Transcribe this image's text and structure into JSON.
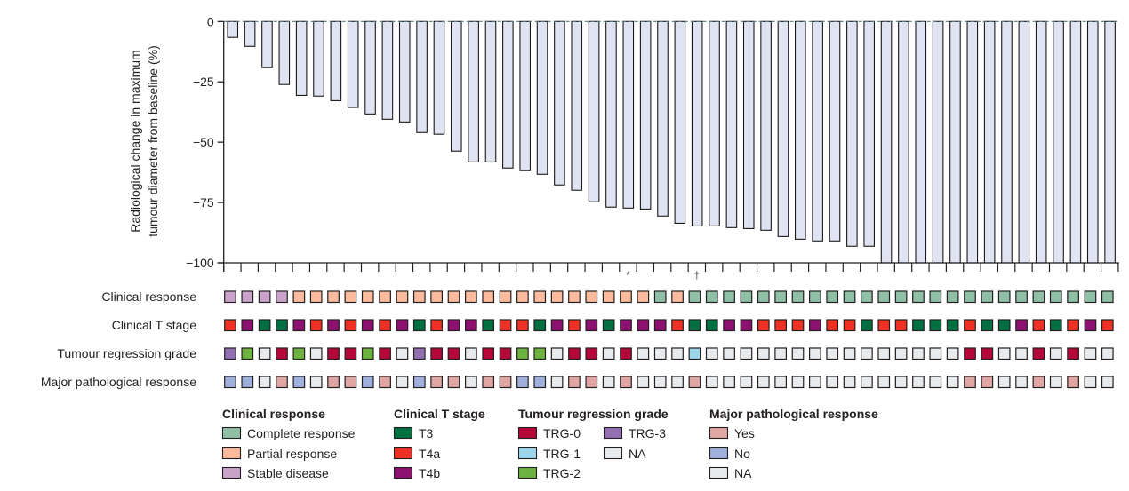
{
  "chart_data": {
    "type": "bar",
    "title": "",
    "xlabel": "",
    "ylabel": "Radiological change in maximum tumour diameter from baseline (%)",
    "ylabel_lines": [
      "Radiological change in maximum",
      "tumour diameter from baseline (%)"
    ],
    "ylim": [
      -100,
      0
    ],
    "yticks": [
      0,
      -25,
      -50,
      -75,
      -100
    ],
    "ytick_labels": [
      "0",
      "−25",
      "−50",
      "−75",
      "−100"
    ],
    "grid": false,
    "reference_line": {
      "y": 0,
      "style": "dashed"
    },
    "values": [
      -6.6,
      -10.3,
      -19.1,
      -26.1,
      -30.6,
      -30.9,
      -32.8,
      -35.6,
      -38.3,
      -40.5,
      -41.6,
      -46.0,
      -46.7,
      -53.7,
      -58.2,
      -58.2,
      -60.7,
      -61.8,
      -63.3,
      -67.7,
      -69.9,
      -74.7,
      -76.9,
      -77.3,
      -77.7,
      -80.6,
      -83.6,
      -84.7,
      -84.7,
      -85.4,
      -85.8,
      -86.5,
      -89.1,
      -90.2,
      -90.9,
      -90.9,
      -93.1,
      -93.1,
      -100,
      -100,
      -100,
      -100,
      -100,
      -100,
      -100,
      -100,
      -100,
      -100,
      -100,
      -100,
      -100,
      -100
    ],
    "annotations": [
      {
        "patient_index": 24,
        "symbol": "*"
      },
      {
        "patient_index": 28,
        "symbol": "†"
      }
    ],
    "tracks": [
      {
        "name": "Clinical response",
        "values": [
          "SD",
          "SD",
          "SD",
          "SD",
          "PR",
          "PR",
          "PR",
          "PR",
          "PR",
          "PR",
          "PR",
          "PR",
          "PR",
          "PR",
          "PR",
          "PR",
          "PR",
          "PR",
          "PR",
          "PR",
          "PR",
          "PR",
          "PR",
          "PR",
          "PR",
          "CR",
          "PR",
          "CR",
          "CR",
          "CR",
          "CR",
          "CR",
          "CR",
          "CR",
          "CR",
          "CR",
          "CR",
          "CR",
          "CR",
          "CR",
          "CR",
          "CR",
          "CR",
          "CR",
          "CR",
          "CR",
          "CR",
          "CR",
          "CR",
          "CR",
          "CR",
          "CR"
        ]
      },
      {
        "name": "Clinical T stage",
        "values": [
          "T4a",
          "T4b",
          "T3",
          "T3",
          "T4b",
          "T4a",
          "T4b",
          "T4a",
          "T4b",
          "T4a",
          "T4b",
          "T3",
          "T4a",
          "T4b",
          "T4b",
          "T3",
          "T4a",
          "T4a",
          "T3",
          "T4b",
          "T4a",
          "T4b",
          "T3",
          "T4b",
          "T4b",
          "T4b",
          "T4a",
          "T3",
          "T3",
          "T4b",
          "T4b",
          "T4a",
          "T4a",
          "T4a",
          "T4b",
          "T4a",
          "T4a",
          "T3",
          "T4a",
          "T4a",
          "T3",
          "T3",
          "T3",
          "T4a",
          "T3",
          "T3",
          "T4b",
          "T4a",
          "T3",
          "T4a",
          "T4b",
          "T4a"
        ]
      },
      {
        "name": "Tumour regression grade",
        "values": [
          "TRG3",
          "TRG2",
          "NA",
          "TRG0",
          "TRG2",
          "NA",
          "TRG0",
          "TRG0",
          "TRG2",
          "TRG0",
          "NA",
          "TRG3",
          "TRG0",
          "TRG0",
          "NA",
          "TRG0",
          "TRG0",
          "TRG2",
          "TRG2",
          "NA",
          "TRG0",
          "TRG0",
          "NA",
          "TRG0",
          "NA",
          "NA",
          "NA",
          "TRG1",
          "NA",
          "NA",
          "NA",
          "NA",
          "NA",
          "NA",
          "NA",
          "NA",
          "NA",
          "NA",
          "NA",
          "NA",
          "NA",
          "NA",
          "NA",
          "TRG0",
          "TRG0",
          "NA",
          "NA",
          "TRG0",
          "NA",
          "TRG0",
          "NA",
          "NA"
        ]
      },
      {
        "name": "Major pathological response",
        "values": [
          "No",
          "No",
          "NA",
          "Yes",
          "No",
          "NA",
          "Yes",
          "Yes",
          "No",
          "Yes",
          "NA",
          "No",
          "Yes",
          "Yes",
          "NA",
          "Yes",
          "Yes",
          "No",
          "No",
          "NA",
          "Yes",
          "Yes",
          "NA",
          "Yes",
          "NA",
          "NA",
          "NA",
          "Yes",
          "NA",
          "NA",
          "NA",
          "NA",
          "NA",
          "NA",
          "NA",
          "NA",
          "NA",
          "NA",
          "NA",
          "NA",
          "NA",
          "NA",
          "NA",
          "Yes",
          "Yes",
          "NA",
          "NA",
          "Yes",
          "NA",
          "Yes",
          "NA",
          "NA"
        ]
      }
    ],
    "legend": [
      {
        "title": "Clinical response",
        "items": [
          {
            "key": "CR",
            "label": "Complete response",
            "color": "#8fbfa5"
          },
          {
            "key": "PR",
            "label": "Partial response",
            "color": "#fbbb9c"
          },
          {
            "key": "SD",
            "label": "Stable disease",
            "color": "#c9a3c9"
          }
        ]
      },
      {
        "title": "Clinical T stage",
        "items": [
          {
            "key": "T3",
            "label": "T3",
            "color": "#007040"
          },
          {
            "key": "T4a",
            "label": "T4a",
            "color": "#ee3124"
          },
          {
            "key": "T4b",
            "label": "T4b",
            "color": "#8c1170"
          }
        ]
      },
      {
        "title": "Tumour regression grade",
        "items": [
          {
            "key": "TRG0",
            "label": "TRG-0",
            "color": "#b30838"
          },
          {
            "key": "TRG1",
            "label": "TRG-1",
            "color": "#9cd6ea"
          },
          {
            "key": "TRG2",
            "label": "TRG-2",
            "color": "#6db33f"
          },
          {
            "key": "TRG3",
            "label": "TRG-3",
            "color": "#9370b2"
          },
          {
            "key": "NA",
            "label": "NA",
            "color": "#e8ebee"
          }
        ]
      },
      {
        "title": "Major pathological response",
        "items": [
          {
            "key": "Yes",
            "label": "Yes",
            "color": "#e0a6a4"
          },
          {
            "key": "No",
            "label": "No",
            "color": "#9fb0dc"
          },
          {
            "key": "NA",
            "label": "NA",
            "color": "#e8ebee"
          }
        ]
      }
    ],
    "colors": {
      "bar_fill": "#e0e3f2",
      "bar_stroke": "#1a1a1a",
      "reference_line": "#5a7a85"
    }
  }
}
